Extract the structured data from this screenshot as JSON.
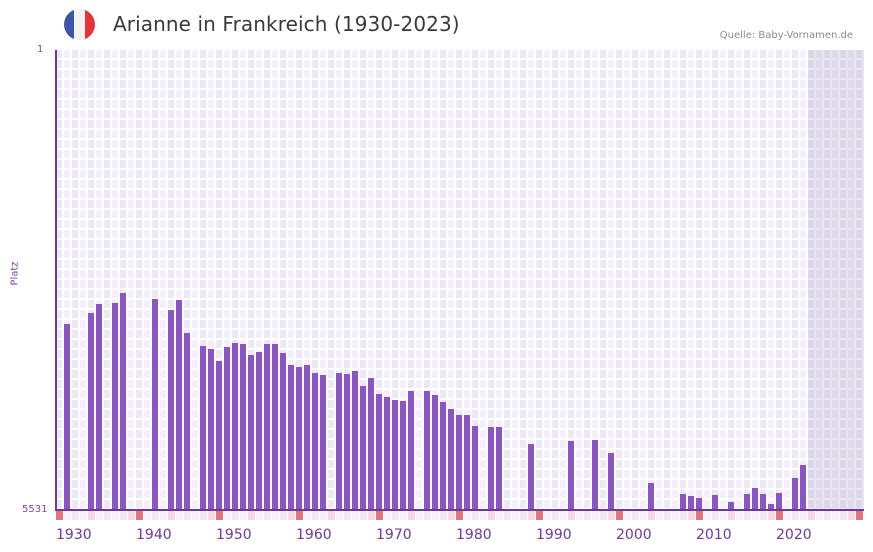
{
  "header": {
    "title": "Arianne in Frankreich (1930-2023)",
    "source": "Quelle: Baby-Vornamen.de",
    "flag": {
      "icon": "france-flag-icon",
      "colors": [
        "#3b56a8",
        "#f2f2f2",
        "#e8323a"
      ]
    }
  },
  "colors": {
    "bar": "#8c55c6",
    "axis": "#6a3a9a",
    "grid_bg": "#f3effc",
    "decade_marker": "#e5747a",
    "mid_decade_marker": "#f5d8e0",
    "future_shade": "#e2dcec"
  },
  "chart_data": {
    "type": "bar",
    "title": "Arianne in Frankreich (1930-2023)",
    "xlabel": "",
    "ylabel": "Platz",
    "y_inverted": true,
    "ylim": [
      1,
      5531
    ],
    "y_ticks": [
      "1",
      "5531"
    ],
    "x_range": [
      1930,
      2030
    ],
    "x_ticks": [
      "1930",
      "1940",
      "1950",
      "1960",
      "1970",
      "1980",
      "1990",
      "2000",
      "2010",
      "2020"
    ],
    "grid": true,
    "legend": null,
    "future_shaded_from": 2024,
    "categories": [
      1931,
      1934,
      1935,
      1937,
      1938,
      1942,
      1944,
      1945,
      1946,
      1948,
      1949,
      1950,
      1951,
      1952,
      1953,
      1954,
      1955,
      1956,
      1957,
      1958,
      1959,
      1960,
      1961,
      1962,
      1963,
      1965,
      1966,
      1967,
      1968,
      1969,
      1970,
      1971,
      1972,
      1973,
      1974,
      1976,
      1977,
      1978,
      1979,
      1980,
      1981,
      1982,
      1984,
      1985,
      1989,
      1994,
      1997,
      1999,
      2004,
      2008,
      2009,
      2010,
      2012,
      2014,
      2016,
      2017,
      2018,
      2019,
      2020,
      2022,
      2023
    ],
    "values": [
      3295,
      3163,
      3055,
      3043,
      2922,
      2994,
      3127,
      3006,
      3403,
      3559,
      3595,
      3740,
      3571,
      3523,
      3535,
      3667,
      3631,
      3535,
      3535,
      3643,
      3787,
      3811,
      3787,
      3884,
      3908,
      3884,
      3896,
      3860,
      4040,
      3944,
      4136,
      4172,
      4208,
      4220,
      4100,
      4100,
      4148,
      4232,
      4316,
      4389,
      4389,
      4521,
      4533,
      4533,
      4737,
      4701,
      4689,
      4845,
      5206,
      5338,
      5362,
      5386,
      5350,
      5434,
      5338,
      5266,
      5338,
      5459,
      5326,
      5146,
      4990
    ]
  }
}
